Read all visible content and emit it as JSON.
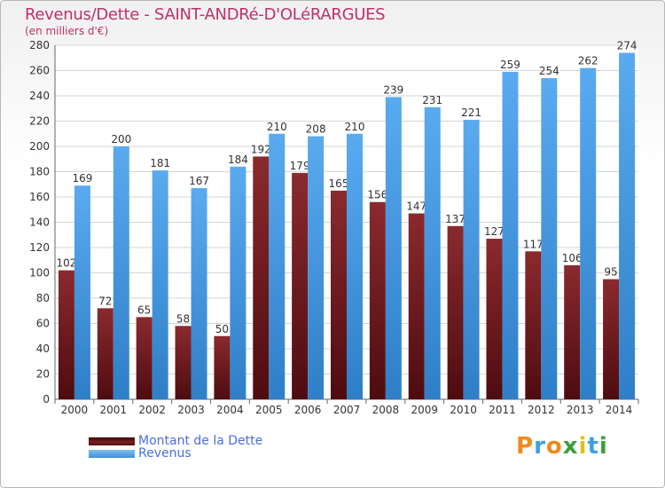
{
  "title": "Revenus/Dette - SAINT-ANDRé-D'OLéRARGUES",
  "subtitle": "(en milliers d'€)",
  "logo_text": "Proxiti",
  "colors": {
    "dette": "#7a1e22",
    "revenus": "#4c9fe6",
    "title": "#c0306a",
    "legend_text": "#4a6de0"
  },
  "legend": [
    {
      "label": "Montant de la Dette",
      "color": "#5a1418"
    },
    {
      "label": "Revenus",
      "color": "#4c9fe6"
    }
  ],
  "chart_data": {
    "type": "bar",
    "categories": [
      "2000",
      "2001",
      "2002",
      "2003",
      "2004",
      "2005",
      "2006",
      "2007",
      "2008",
      "2009",
      "2010",
      "2011",
      "2012",
      "2013",
      "2014"
    ],
    "series": [
      {
        "name": "Montant de la Dette",
        "values": [
          102,
          72,
          65,
          58,
          50,
          192,
          179,
          165,
          156,
          147,
          137,
          127,
          117,
          106,
          95
        ]
      },
      {
        "name": "Revenus",
        "values": [
          169,
          200,
          181,
          167,
          184,
          210,
          208,
          210,
          239,
          231,
          221,
          259,
          254,
          262,
          274
        ]
      }
    ],
    "ylim": [
      0,
      280
    ],
    "yticks": [
      0,
      20,
      40,
      60,
      80,
      100,
      120,
      140,
      160,
      180,
      200,
      220,
      240,
      260,
      280
    ],
    "grid": true,
    "legend_position": "bottom-left"
  }
}
